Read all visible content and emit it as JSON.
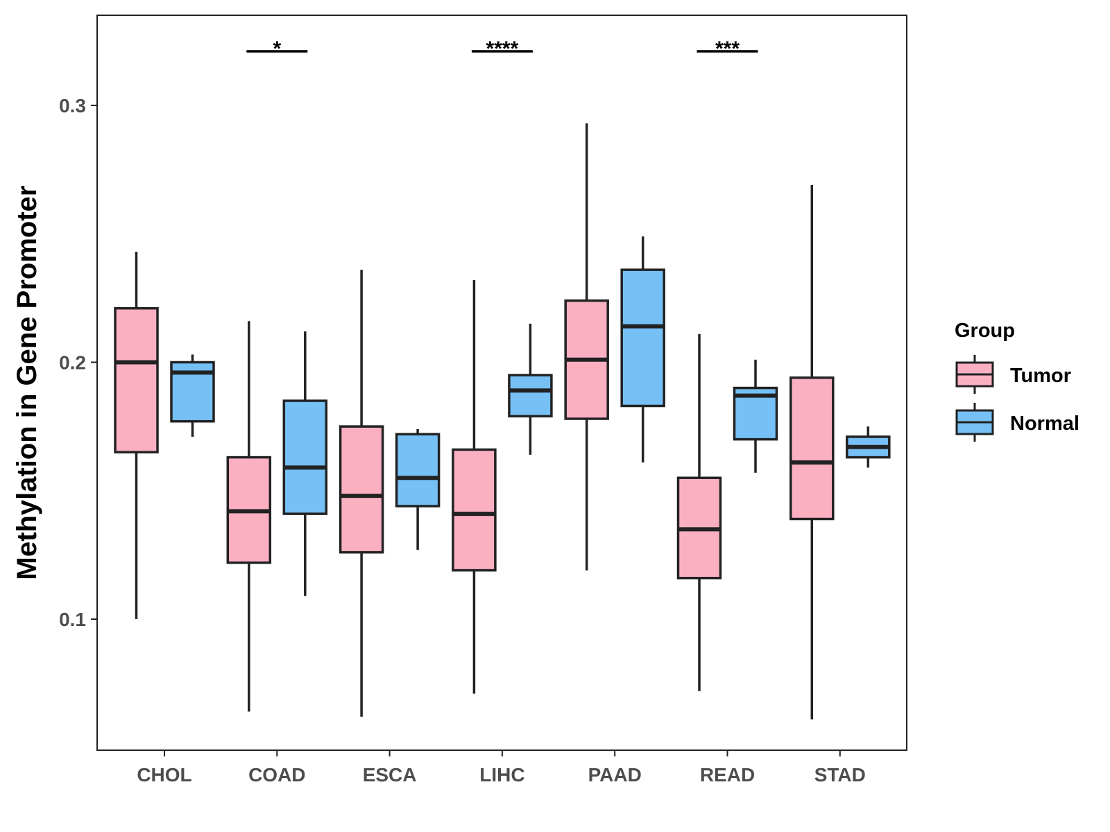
{
  "chart_data": {
    "type": "boxplot",
    "title": "",
    "xlabel": "",
    "ylabel": "Methylation in Gene Promoter",
    "ylim": [
      0.05,
      0.335
    ],
    "yticks": [
      0.1,
      0.2,
      0.3
    ],
    "ytick_labels": [
      "0.1",
      "0.2",
      "0.3"
    ],
    "grid": false,
    "categories": [
      "CHOL",
      "COAD",
      "ESCA",
      "LIHC",
      "PAAD",
      "READ",
      "STAD"
    ],
    "legend": {
      "title": "Group",
      "position": "right",
      "entries": [
        {
          "label": "Tumor",
          "color": "#fbb0c2"
        },
        {
          "label": "Normal",
          "color": "#76c0f6"
        }
      ]
    },
    "series": [
      {
        "name": "Tumor",
        "color": "#fbb0c2",
        "boxes": [
          {
            "category": "CHOL",
            "min": 0.1,
            "q1": 0.165,
            "median": 0.2,
            "q3": 0.221,
            "max": 0.243
          },
          {
            "category": "COAD",
            "min": 0.064,
            "q1": 0.122,
            "median": 0.142,
            "q3": 0.163,
            "max": 0.216
          },
          {
            "category": "ESCA",
            "min": 0.062,
            "q1": 0.126,
            "median": 0.148,
            "q3": 0.175,
            "max": 0.236
          },
          {
            "category": "LIHC",
            "min": 0.071,
            "q1": 0.119,
            "median": 0.141,
            "q3": 0.166,
            "max": 0.232
          },
          {
            "category": "PAAD",
            "min": 0.119,
            "q1": 0.178,
            "median": 0.201,
            "q3": 0.224,
            "max": 0.293
          },
          {
            "category": "READ",
            "min": 0.072,
            "q1": 0.116,
            "median": 0.135,
            "q3": 0.155,
            "max": 0.211
          },
          {
            "category": "STAD",
            "min": 0.061,
            "q1": 0.139,
            "median": 0.161,
            "q3": 0.194,
            "max": 0.269
          }
        ]
      },
      {
        "name": "Normal",
        "color": "#76c0f6",
        "boxes": [
          {
            "category": "CHOL",
            "min": 0.171,
            "q1": 0.177,
            "median": 0.196,
            "q3": 0.2,
            "max": 0.203
          },
          {
            "category": "COAD",
            "min": 0.109,
            "q1": 0.141,
            "median": 0.159,
            "q3": 0.185,
            "max": 0.212
          },
          {
            "category": "ESCA",
            "min": 0.127,
            "q1": 0.144,
            "median": 0.155,
            "q3": 0.172,
            "max": 0.174
          },
          {
            "category": "LIHC",
            "min": 0.164,
            "q1": 0.179,
            "median": 0.189,
            "q3": 0.195,
            "max": 0.215
          },
          {
            "category": "PAAD",
            "min": 0.161,
            "q1": 0.183,
            "median": 0.214,
            "q3": 0.236,
            "max": 0.249
          },
          {
            "category": "READ",
            "min": 0.157,
            "q1": 0.17,
            "median": 0.187,
            "q3": 0.19,
            "max": 0.201
          },
          {
            "category": "STAD",
            "min": 0.159,
            "q1": 0.163,
            "median": 0.167,
            "q3": 0.171,
            "max": 0.175
          }
        ]
      }
    ],
    "annotations": [
      {
        "category": "COAD",
        "label": "*"
      },
      {
        "category": "LIHC",
        "label": "****"
      },
      {
        "category": "READ",
        "label": "***"
      }
    ]
  },
  "colors": {
    "box_stroke": "#222222",
    "panel_border": "#222222"
  }
}
